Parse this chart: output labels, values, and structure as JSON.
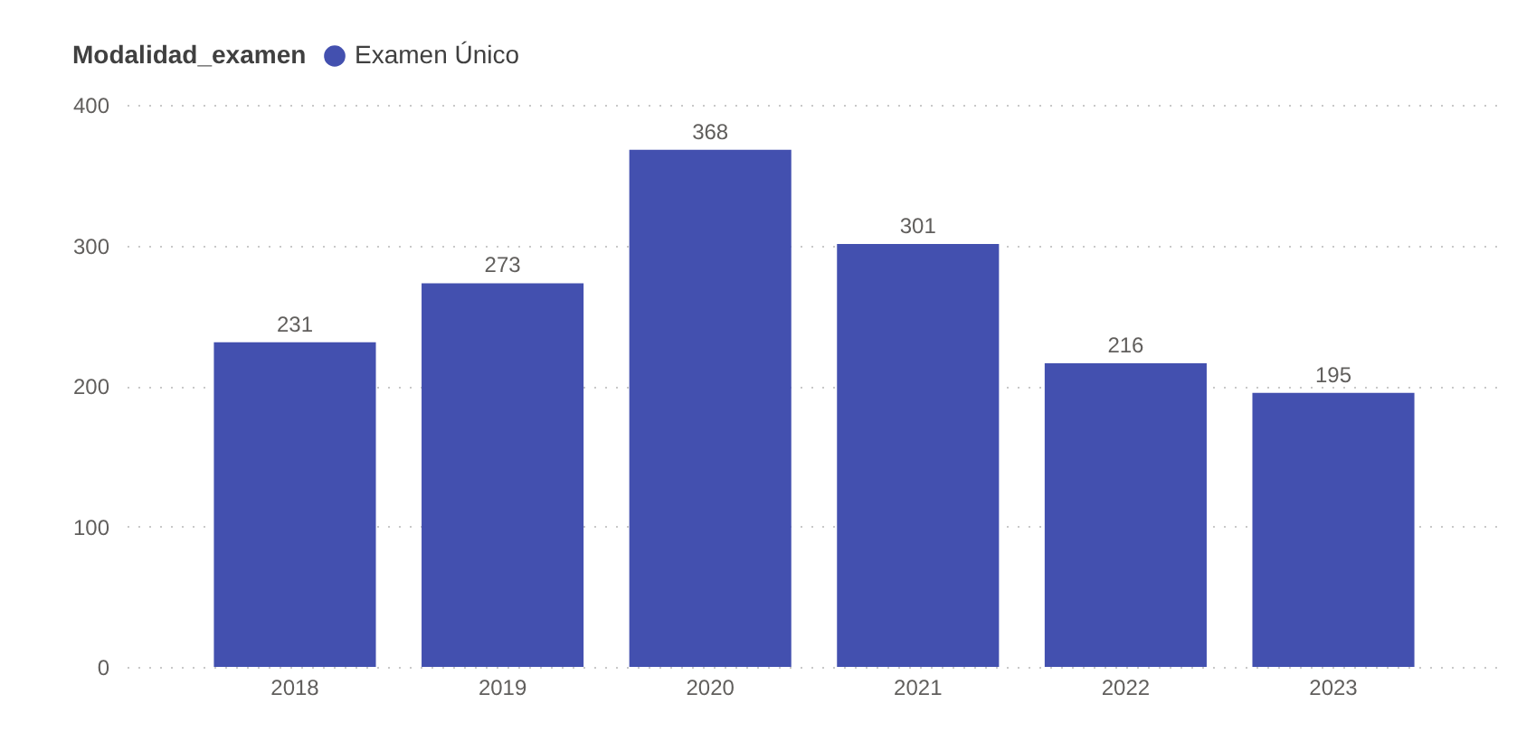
{
  "chart_data": {
    "type": "bar",
    "legend_title": "Modalidad_examen",
    "categories": [
      "2018",
      "2019",
      "2020",
      "2021",
      "2022",
      "2023"
    ],
    "series": [
      {
        "name": "Examen Único",
        "color": "#4350af",
        "values": [
          231,
          273,
          368,
          301,
          216,
          195
        ]
      }
    ],
    "ylim": [
      0,
      400
    ],
    "yticks": [
      0,
      100,
      200,
      300,
      400
    ],
    "grid": "y",
    "legend": "top left",
    "data_labels": true
  }
}
